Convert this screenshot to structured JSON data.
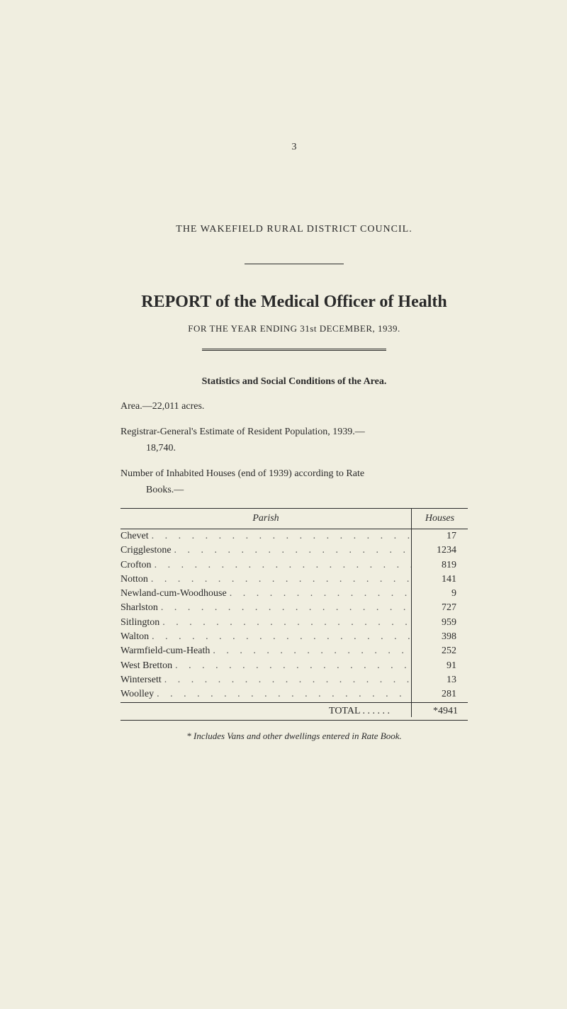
{
  "page_number": "3",
  "council_line": "THE WAKEFIELD RURAL DISTRICT COUNCIL.",
  "report_title": "REPORT of the Medical Officer of Health",
  "year_line": "FOR THE YEAR ENDING 31st DECEMBER, 1939.",
  "stats_heading": "Statistics and Social Conditions of the Area.",
  "area_line": "Area.—22,011 acres.",
  "registrar_line": "Registrar-General's Estimate of Resident Population, 1939.—",
  "registrar_value": "18,740.",
  "inhabited_line": "Number of Inhabited Houses (end of 1939) according to Rate",
  "inhabited_cont": "Books.—",
  "table": {
    "header_parish": "Parish",
    "header_houses": "Houses",
    "rows": [
      {
        "parish": "Chevet",
        "houses": "17"
      },
      {
        "parish": "Crigglestone",
        "houses": "1234"
      },
      {
        "parish": "Crofton",
        "houses": "819"
      },
      {
        "parish": "Notton",
        "houses": "141"
      },
      {
        "parish": "Newland-cum-Woodhouse",
        "houses": "9"
      },
      {
        "parish": "Sharlston",
        "houses": "727"
      },
      {
        "parish": "Sitlington",
        "houses": "959"
      },
      {
        "parish": "Walton",
        "houses": "398"
      },
      {
        "parish": "Warmfield-cum-Heath",
        "houses": "252"
      },
      {
        "parish": "West Bretton",
        "houses": "91"
      },
      {
        "parish": "Wintersett",
        "houses": "13"
      },
      {
        "parish": "Woolley",
        "houses": "281"
      }
    ],
    "total_label": "TOTAL . .     . .     . .",
    "total_value": "*4941"
  },
  "footnote": "* Includes Vans and other dwellings entered in Rate Book.",
  "colors": {
    "background": "#f0eee0",
    "text": "#2a2a2a"
  }
}
